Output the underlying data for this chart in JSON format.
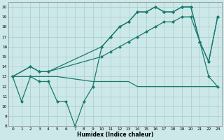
{
  "xlabel": "Humidex (Indice chaleur)",
  "bg_color": "#cce8e8",
  "grid_color": "#aacccc",
  "line_color": "#1a7a6e",
  "xlim": [
    -0.5,
    23.5
  ],
  "ylim": [
    8,
    20.5
  ],
  "xticks": [
    0,
    1,
    2,
    3,
    4,
    5,
    6,
    7,
    8,
    9,
    10,
    11,
    12,
    13,
    14,
    15,
    16,
    17,
    18,
    19,
    20,
    21,
    22,
    23
  ],
  "yticks": [
    8,
    9,
    10,
    11,
    12,
    13,
    14,
    15,
    16,
    17,
    18,
    19,
    20
  ],
  "line_flat_x": [
    0,
    2,
    3,
    4,
    5,
    9,
    10,
    11,
    12,
    13,
    14,
    15,
    16,
    17,
    18,
    19,
    20,
    21,
    22,
    23
  ],
  "line_flat_y": [
    13,
    13,
    13,
    13,
    13,
    12.5,
    12.5,
    12.5,
    12.5,
    12.5,
    12,
    12,
    12,
    12,
    12,
    12,
    12,
    12,
    12,
    12
  ],
  "line_mid_x": [
    0,
    2,
    3,
    4,
    10,
    11,
    12,
    13,
    14,
    15,
    16,
    17,
    18,
    19,
    20,
    21,
    22,
    23
  ],
  "line_mid_y": [
    13,
    14,
    13.5,
    13.5,
    15,
    15.5,
    16,
    16.5,
    17,
    17.5,
    18,
    18.5,
    18.5,
    19,
    19,
    16.5,
    13,
    12
  ],
  "line_top_x": [
    0,
    2,
    3,
    4,
    10,
    11,
    12,
    13,
    14,
    15,
    16,
    17,
    18,
    19,
    20,
    21,
    22,
    23
  ],
  "line_top_y": [
    13,
    14,
    13.5,
    13.5,
    16,
    17,
    18,
    18.5,
    19.5,
    19.5,
    20,
    19.5,
    19.5,
    20,
    20,
    16.5,
    14.5,
    19
  ],
  "line_zigzag_x": [
    0,
    1,
    2,
    3,
    4,
    5,
    6,
    7,
    8,
    9,
    10,
    11,
    12,
    13,
    14,
    15,
    16,
    17,
    18,
    19,
    20,
    21,
    22,
    23
  ],
  "line_zigzag_y": [
    13,
    10.5,
    13,
    12.5,
    12.5,
    10.5,
    10.5,
    8,
    10.5,
    12,
    16,
    17,
    18,
    18.5,
    19.5,
    19.5,
    20,
    19.5,
    19.5,
    20,
    20,
    16.5,
    14.5,
    19
  ]
}
